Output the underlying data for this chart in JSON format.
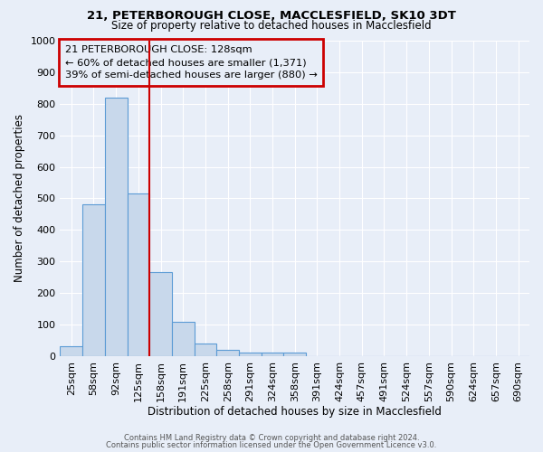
{
  "title1": "21, PETERBOROUGH CLOSE, MACCLESFIELD, SK10 3DT",
  "title2": "Size of property relative to detached houses in Macclesfield",
  "xlabel": "Distribution of detached houses by size in Macclesfield",
  "ylabel": "Number of detached properties",
  "categories": [
    "25sqm",
    "58sqm",
    "92sqm",
    "125sqm",
    "158sqm",
    "191sqm",
    "225sqm",
    "258sqm",
    "291sqm",
    "324sqm",
    "358sqm",
    "391sqm",
    "424sqm",
    "457sqm",
    "491sqm",
    "524sqm",
    "557sqm",
    "590sqm",
    "624sqm",
    "657sqm",
    "690sqm"
  ],
  "values": [
    30,
    480,
    820,
    515,
    265,
    110,
    40,
    20,
    12,
    12,
    12,
    0,
    0,
    0,
    0,
    0,
    0,
    0,
    0,
    0,
    0
  ],
  "bar_color": "#c8d8eb",
  "bar_edge_color": "#5b9bd5",
  "background_color": "#e8eef8",
  "plot_bg_color": "#e8eef8",
  "grid_color": "#ffffff",
  "annotation_text": "21 PETERBOROUGH CLOSE: 128sqm\n← 60% of detached houses are smaller (1,371)\n39% of semi-detached houses are larger (880) →",
  "annotation_box_facecolor": "#e8eef8",
  "annotation_box_edgecolor": "#cc0000",
  "vline_x": 3.5,
  "vline_color": "#cc0000",
  "ylim": [
    0,
    1000
  ],
  "yticks": [
    0,
    100,
    200,
    300,
    400,
    500,
    600,
    700,
    800,
    900,
    1000
  ],
  "footer1": "Contains HM Land Registry data © Crown copyright and database right 2024.",
  "footer2": "Contains public sector information licensed under the Open Government Licence v3.0."
}
